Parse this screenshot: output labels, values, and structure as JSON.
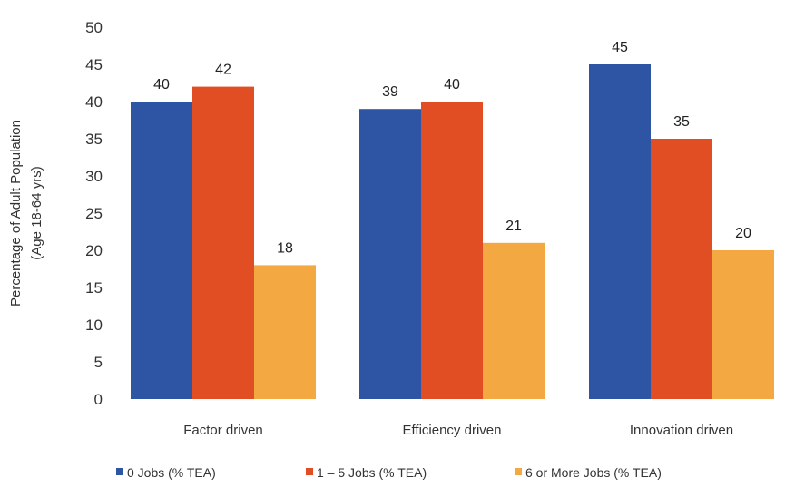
{
  "chart_data": {
    "type": "bar",
    "categories": [
      "Factor driven",
      "Efficiency driven",
      "Innovation driven"
    ],
    "series": [
      {
        "name": "0 Jobs (% TEA)",
        "values": [
          40,
          39,
          45
        ],
        "color": "#2E55A4"
      },
      {
        "name": "1 – 5 Jobs  (% TEA)",
        "values": [
          42,
          40,
          35
        ],
        "color": "#E24E24"
      },
      {
        "name": "6 or More Jobs  (% TEA)",
        "values": [
          18,
          21,
          20
        ],
        "color": "#F3A841"
      }
    ],
    "xlabel": "",
    "ylabel": [
      "Percentage of Adult Population",
      "(Age 18-64 yrs)"
    ],
    "ylim": [
      0,
      50
    ],
    "yticks": [
      0,
      5,
      10,
      15,
      20,
      25,
      30,
      35,
      40,
      45,
      50
    ],
    "grid": false,
    "legend_position": "bottom"
  }
}
